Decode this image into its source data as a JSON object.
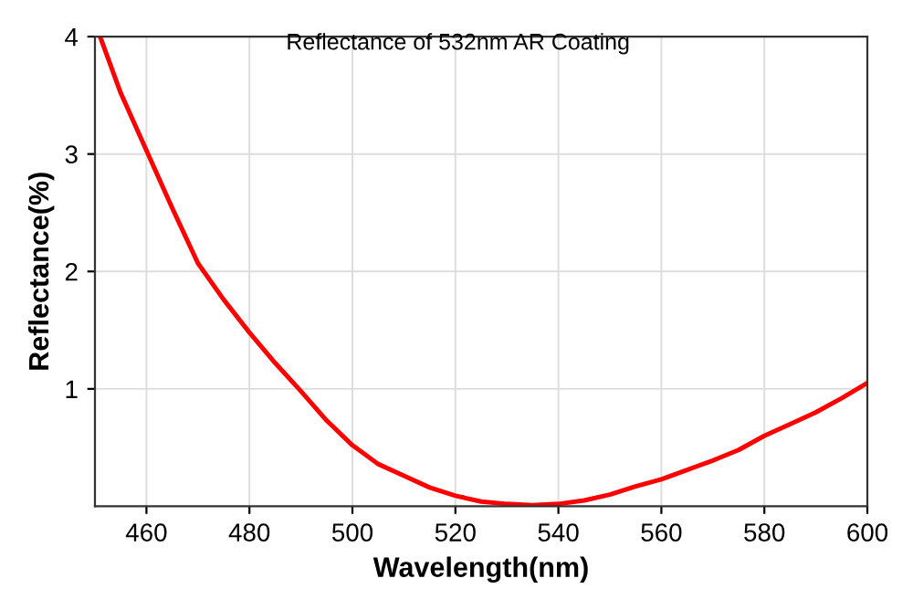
{
  "chart_data": {
    "type": "line",
    "title": "Reflectance of 532nm AR Coating",
    "xlabel": "Wavelength(nm)",
    "ylabel": "Reflectance(%)",
    "x": [
      451,
      455,
      460,
      465,
      470,
      475,
      480,
      485,
      490,
      495,
      500,
      505,
      510,
      515,
      520,
      525,
      530,
      535,
      540,
      545,
      550,
      555,
      560,
      565,
      570,
      575,
      580,
      585,
      590,
      595,
      600
    ],
    "series": [
      {
        "color": "#ff0000",
        "values": [
          4.0,
          3.52,
          3.03,
          2.54,
          2.07,
          1.76,
          1.48,
          1.22,
          0.98,
          0.73,
          0.52,
          0.36,
          0.26,
          0.16,
          0.09,
          0.04,
          0.02,
          0.01,
          0.02,
          0.05,
          0.1,
          0.17,
          0.23,
          0.31,
          0.39,
          0.48,
          0.6,
          0.7,
          0.8,
          0.92,
          1.05
        ]
      }
    ],
    "xlim": [
      450,
      600
    ],
    "xticks": [
      460,
      480,
      500,
      520,
      540,
      560,
      580,
      600
    ],
    "ylim": [
      0,
      4
    ],
    "yticks": [
      1,
      2,
      3,
      4
    ],
    "grid": true,
    "legend": false,
    "marker": "none",
    "line_style": "solid"
  }
}
